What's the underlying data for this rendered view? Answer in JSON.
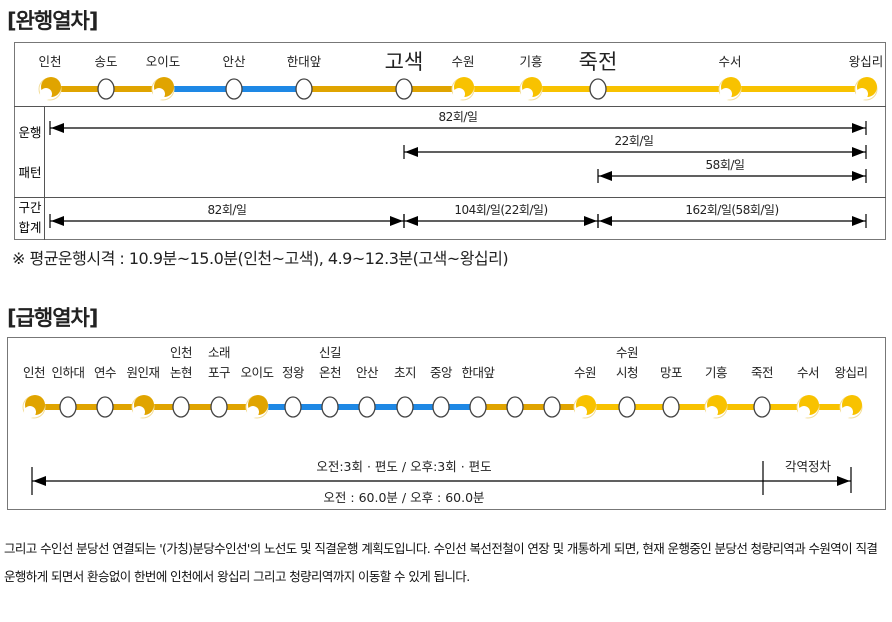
{
  "local": {
    "title": "[완행열차]",
    "stations": [
      {
        "name": "인천",
        "transfer": true
      },
      {
        "name": "송도",
        "transfer": false
      },
      {
        "name": "오이도",
        "transfer": true
      },
      {
        "name": "안산",
        "transfer": false
      },
      {
        "name": "한대앞",
        "transfer": false
      },
      {
        "name": "고색",
        "transfer": false,
        "emphasis": true
      },
      {
        "name": "수원",
        "transfer": true
      },
      {
        "name": "기흥",
        "transfer": true
      },
      {
        "name": "죽전",
        "transfer": false,
        "emphasis": true
      },
      {
        "name": "수서",
        "transfer": true
      },
      {
        "name": "왕십리",
        "transfer": true
      }
    ],
    "segment_colors": [
      "#E0A400",
      "#E0A400",
      "#1E88E5",
      "#1E88E5",
      "#E0A400",
      "#E0A400",
      "#F8C200",
      "#F8C200",
      "#F8C200",
      "#F8C200"
    ],
    "row_label_pattern": [
      "운행",
      "패턴"
    ],
    "row_label_total": [
      "구간",
      "합계"
    ],
    "patterns": [
      {
        "from": "인천",
        "to": "왕십리",
        "label": "82회/일"
      },
      {
        "from": "고색",
        "to": "왕십리",
        "label": "22회/일"
      },
      {
        "from": "죽전",
        "to": "왕십리",
        "label": "58회/일"
      }
    ],
    "totals": [
      {
        "from": "인천",
        "to": "고색",
        "label": "82회/일"
      },
      {
        "from": "고색",
        "to": "죽전",
        "label": "104회/일(22회/일)"
      },
      {
        "from": "죽전",
        "to": "왕십리",
        "label": "162회/일(58회/일)"
      }
    ],
    "note": "※  평균운행시격  :  10.9분~15.0분(인천~고색),   4.9~12.3분(고색~왕십리)"
  },
  "express": {
    "title": "[급행열차]",
    "stations": [
      {
        "name": [
          "인천"
        ],
        "transfer": true
      },
      {
        "name": [
          "인하대"
        ],
        "transfer": false
      },
      {
        "name": [
          "연수"
        ],
        "transfer": false
      },
      {
        "name": [
          "원인재"
        ],
        "transfer": true
      },
      {
        "name": [
          "인천",
          "논현"
        ],
        "transfer": false
      },
      {
        "name": [
          "소래",
          "포구"
        ],
        "transfer": false
      },
      {
        "name": [
          "오이도"
        ],
        "transfer": true
      },
      {
        "name": [
          "정왕"
        ],
        "transfer": false
      },
      {
        "name": [
          "신길",
          "온천"
        ],
        "transfer": false
      },
      {
        "name": [
          "안산"
        ],
        "transfer": false
      },
      {
        "name": [
          "초지"
        ],
        "transfer": false
      },
      {
        "name": [
          "중앙"
        ],
        "transfer": false
      },
      {
        "name": [
          "한대앞"
        ],
        "transfer": false
      },
      {
        "name": [],
        "transfer": false
      },
      {
        "name": [],
        "transfer": false
      },
      {
        "name": [
          "수원"
        ],
        "transfer": true
      },
      {
        "name": [
          "수원",
          "시청"
        ],
        "transfer": false
      },
      {
        "name": [
          "망포"
        ],
        "transfer": false
      },
      {
        "name": [
          "기흥"
        ],
        "transfer": true
      },
      {
        "name": [
          "죽전"
        ],
        "transfer": false
      },
      {
        "name": [
          "수서"
        ],
        "transfer": true
      },
      {
        "name": [
          "왕십리"
        ],
        "transfer": true
      }
    ],
    "segment_colors": [
      "#E0A400",
      "#E0A400",
      "#E0A400",
      "#E0A400",
      "#E0A400",
      "#E0A400",
      "#1E88E5",
      "#1E88E5",
      "#1E88E5",
      "#1E88E5",
      "#1E88E5",
      "#1E88E5",
      "#E0A400",
      "#E0A400",
      "#E0A400",
      "#F8C200",
      "#F8C200",
      "#F8C200",
      "#F8C200",
      "#F8C200",
      "#F8C200"
    ],
    "frequency": "오전:3회 · 편도  /  오후:3회 · 편도",
    "interval": "오전  :  60.0분  /  오후  :  60.0분",
    "all_stop_label": "각역정차"
  },
  "paragraph": "그리고 수인선 분당선 연결되는 '(가칭)분당수인선'의 노선도 및 직결운행 계획도입니다. 수인선 복선전철이 연장 및 개통하게 되면, 현재 운행중인 분당선 청량리역과 수원역이 직결 운행하게 되면서 환승없이 한번에 인천에서 왕십리 그리고 청량리역까지 이동할 수 있게 됩니다.",
  "colors": {
    "gold": "#E0A400",
    "yellow": "#F8C200",
    "blue": "#1E88E5"
  }
}
